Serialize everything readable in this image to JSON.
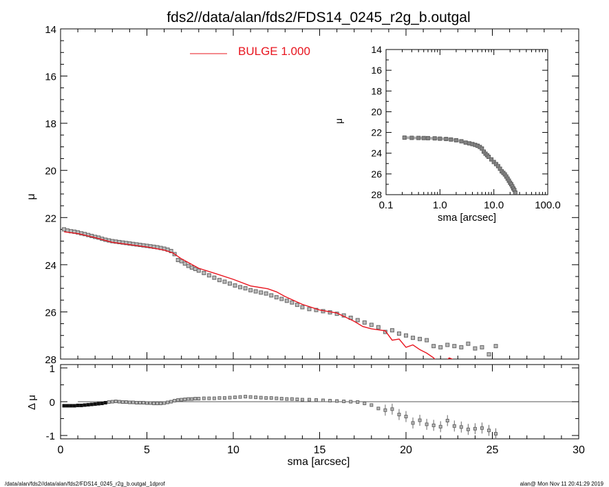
{
  "footer": {
    "left": "/data/alan/fds2//data/alan/fds2/FDS14_0245_r2g_b.outgal_1dprof",
    "right": "alan@  Mon Nov 11 20:41:29 2019"
  },
  "colors": {
    "model": "#e8141e",
    "points": "#666666",
    "axes": "#000000",
    "zero_line": "#555555"
  },
  "chart_data": [
    {
      "id": "main",
      "type": "scatter",
      "title": "fds2//data/alan/fds2/FDS14_0245_r2g_b.outgal",
      "xlabel": "",
      "ylabel": "μ",
      "xlim": [
        0,
        30
      ],
      "ylim": [
        28,
        14
      ],
      "y_inverted": true,
      "yticks": [
        "14",
        "16",
        "18",
        "20",
        "22",
        "24",
        "26",
        "28"
      ],
      "legend": {
        "label": "BULGE",
        "value": "1.000",
        "placement": "top-center"
      },
      "series": [
        {
          "name": "",
          "kind": "points",
          "x": [
            0.2,
            0.4,
            0.6,
            0.8,
            1.0,
            1.2,
            1.4,
            1.6,
            1.8,
            2.0,
            2.2,
            2.4,
            2.6,
            2.8,
            3.0,
            3.2,
            3.4,
            3.6,
            3.8,
            4.0,
            4.2,
            4.4,
            4.6,
            4.8,
            5.0,
            5.2,
            5.4,
            5.6,
            5.8,
            6.0,
            6.2,
            6.4,
            6.6,
            6.8,
            7.0,
            7.2,
            7.4,
            7.6,
            7.8,
            8.0,
            8.3,
            8.6,
            8.9,
            9.2,
            9.5,
            9.8,
            10.1,
            10.4,
            10.7,
            11.0,
            11.3,
            11.6,
            11.9,
            12.2,
            12.5,
            12.8,
            13.1,
            13.4,
            13.7,
            14.0,
            14.4,
            14.8,
            15.2,
            15.6,
            16.0,
            16.4,
            16.8,
            17.2,
            17.6,
            18.0,
            18.4,
            18.8,
            19.2,
            19.6,
            20.0,
            20.4,
            20.8,
            21.2,
            21.6,
            22.0,
            22.4,
            22.8,
            23.2,
            23.6,
            24.0,
            24.4,
            24.8,
            25.2
          ],
          "y": [
            22.5,
            22.55,
            22.58,
            22.6,
            22.63,
            22.67,
            22.7,
            22.74,
            22.78,
            22.82,
            22.85,
            22.9,
            22.94,
            22.97,
            23.0,
            23.02,
            23.04,
            23.06,
            23.08,
            23.1,
            23.12,
            23.14,
            23.16,
            23.18,
            23.2,
            23.22,
            23.24,
            23.26,
            23.29,
            23.32,
            23.36,
            23.42,
            23.55,
            23.8,
            23.85,
            23.95,
            24.05,
            24.12,
            24.18,
            24.25,
            24.35,
            24.45,
            24.55,
            24.65,
            24.72,
            24.8,
            24.88,
            24.95,
            25.0,
            25.08,
            25.13,
            25.18,
            25.22,
            25.3,
            25.38,
            25.45,
            25.53,
            25.6,
            25.7,
            25.8,
            25.88,
            25.92,
            25.97,
            26.02,
            26.08,
            26.15,
            26.25,
            26.35,
            26.45,
            26.55,
            26.65,
            26.85,
            26.78,
            26.92,
            27.0,
            27.1,
            27.15,
            27.2,
            27.45,
            27.5,
            27.4,
            27.45,
            27.5,
            27.35,
            27.55,
            27.5,
            27.8,
            27.45
          ]
        },
        {
          "name": "BULGE",
          "kind": "line",
          "x": [
            0.2,
            1.0,
            2.0,
            3.0,
            4.0,
            5.0,
            6.0,
            6.5,
            7.0,
            7.5,
            8.0,
            9.0,
            10.0,
            11.0,
            12.0,
            12.5,
            13.0,
            14.0,
            15.0,
            16.0,
            17.0,
            17.5,
            18.0,
            18.8,
            19.2,
            19.6,
            20.0,
            20.4,
            20.8,
            21.2,
            21.6,
            22.0,
            22.5,
            23.0
          ],
          "y": [
            22.6,
            22.68,
            22.85,
            23.05,
            23.15,
            23.25,
            23.38,
            23.5,
            23.75,
            23.95,
            24.15,
            24.38,
            24.62,
            24.9,
            25.02,
            25.15,
            25.35,
            25.68,
            25.92,
            26.05,
            26.4,
            26.62,
            26.72,
            26.8,
            27.2,
            27.15,
            27.5,
            27.4,
            27.6,
            27.75,
            27.95,
            28.3,
            27.95,
            28.1
          ]
        }
      ]
    },
    {
      "id": "residual",
      "type": "scatter",
      "xlabel": "sma [arcsec]",
      "ylabel": "Δ μ",
      "xlim": [
        0,
        30
      ],
      "ylim": [
        -1.1,
        1.1
      ],
      "xticks": [
        "0",
        "5",
        "10",
        "15",
        "20",
        "25",
        "30"
      ],
      "yticks": [
        "-1",
        "0",
        "1"
      ],
      "series": [
        {
          "name": "",
          "x": [
            0.2,
            0.4,
            0.6,
            0.8,
            1.0,
            1.2,
            1.4,
            1.6,
            1.8,
            2.0,
            2.2,
            2.4,
            2.6,
            2.8,
            3.0,
            3.2,
            3.4,
            3.6,
            3.8,
            4.0,
            4.2,
            4.4,
            4.6,
            4.8,
            5.0,
            5.2,
            5.4,
            5.6,
            5.8,
            6.0,
            6.2,
            6.4,
            6.6,
            6.8,
            7.0,
            7.2,
            7.4,
            7.6,
            7.8,
            8.0,
            8.3,
            8.6,
            8.9,
            9.2,
            9.5,
            9.8,
            10.1,
            10.4,
            10.7,
            11.0,
            11.3,
            11.6,
            11.9,
            12.2,
            12.5,
            12.8,
            13.1,
            13.4,
            13.7,
            14.0,
            14.4,
            14.8,
            15.2,
            15.6,
            16.0,
            16.4,
            16.8,
            17.2,
            17.6,
            18.0,
            18.4,
            18.8,
            19.2,
            19.6,
            20.0,
            20.4,
            20.8,
            21.2,
            21.6,
            22.0,
            22.4,
            22.8,
            23.2,
            23.6,
            24.0,
            24.4,
            24.8,
            25.2
          ],
          "y": [
            -0.12,
            -0.12,
            -0.12,
            -0.12,
            -0.11,
            -0.11,
            -0.1,
            -0.09,
            -0.08,
            -0.07,
            -0.06,
            -0.05,
            -0.03,
            -0.01,
            0.0,
            0.01,
            0.0,
            -0.01,
            -0.01,
            -0.02,
            -0.02,
            -0.03,
            -0.03,
            -0.03,
            -0.04,
            -0.04,
            -0.05,
            -0.05,
            -0.05,
            -0.04,
            -0.02,
            0.0,
            0.03,
            0.05,
            0.06,
            0.07,
            0.08,
            0.08,
            0.09,
            0.09,
            0.1,
            0.1,
            0.1,
            0.11,
            0.11,
            0.12,
            0.13,
            0.14,
            0.15,
            0.14,
            0.13,
            0.12,
            0.11,
            0.11,
            0.1,
            0.09,
            0.08,
            0.08,
            0.07,
            0.06,
            0.06,
            0.05,
            0.04,
            0.03,
            0.02,
            0.01,
            0.0,
            -0.01,
            -0.05,
            -0.1,
            -0.2,
            -0.25,
            -0.22,
            -0.38,
            -0.44,
            -0.63,
            -0.55,
            -0.67,
            -0.7,
            -0.74,
            -0.56,
            -0.72,
            -0.75,
            -0.82,
            -0.8,
            -0.78,
            -0.85,
            -0.95
          ]
        }
      ]
    },
    {
      "id": "inset",
      "type": "scatter",
      "xlabel": "sma [arcsec]",
      "ylabel": "μ",
      "x_scale": "log",
      "xlim": [
        0.1,
        100
      ],
      "ylim": [
        28,
        14
      ],
      "y_inverted": true,
      "xticks": [
        "0.1",
        "1.0",
        "10.0",
        "100.0"
      ],
      "yticks": [
        "14",
        "16",
        "18",
        "20",
        "22",
        "24",
        "26",
        "28"
      ],
      "series": [
        {
          "name": "",
          "x": [
            0.22,
            0.3,
            0.4,
            0.5,
            0.6,
            0.8,
            1.0,
            1.3,
            1.6,
            2.0,
            2.5,
            3.0,
            3.5,
            4.0,
            4.5,
            5.0,
            5.5,
            6.0,
            6.5,
            7.0,
            7.5,
            8.0,
            9.0,
            10.0,
            11.0,
            12.0,
            13.0,
            14.0,
            15.0,
            16.0,
            17.0,
            18.0,
            19.0,
            20.0,
            21.0,
            22.0,
            23.0,
            24.0,
            25.0
          ],
          "y": [
            22.5,
            22.52,
            22.53,
            22.54,
            22.55,
            22.57,
            22.6,
            22.63,
            22.68,
            22.75,
            22.85,
            22.98,
            23.05,
            23.12,
            23.2,
            23.28,
            23.4,
            23.55,
            23.85,
            24.05,
            24.2,
            24.35,
            24.6,
            24.85,
            25.05,
            25.25,
            25.5,
            25.75,
            25.9,
            26.05,
            26.25,
            26.45,
            26.65,
            26.85,
            27.0,
            27.2,
            27.4,
            27.55,
            27.8
          ]
        }
      ]
    }
  ]
}
